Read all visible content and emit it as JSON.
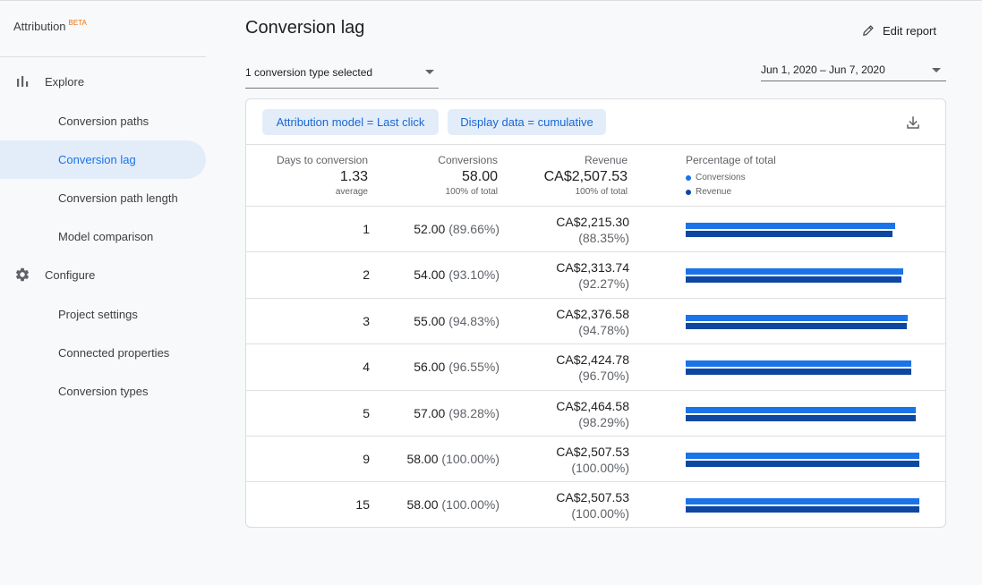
{
  "app": {
    "name": "Attribution",
    "badge": "BETA"
  },
  "sidebar": {
    "explore": {
      "label": "Explore",
      "icon": "bar-chart-icon",
      "items": [
        {
          "label": "Conversion paths",
          "active": false
        },
        {
          "label": "Conversion lag",
          "active": true
        },
        {
          "label": "Conversion path length",
          "active": false
        },
        {
          "label": "Model comparison",
          "active": false
        }
      ]
    },
    "configure": {
      "label": "Configure",
      "icon": "gear-icon",
      "items": [
        {
          "label": "Project settings"
        },
        {
          "label": "Connected properties"
        },
        {
          "label": "Conversion types"
        }
      ]
    }
  },
  "header": {
    "title": "Conversion lag",
    "edit_report": "Edit report",
    "conversion_select": "1 conversion type selected",
    "date_range": "Jun 1, 2020 – Jun 7, 2020"
  },
  "filters": {
    "model_chip": "Attribution model = Last click",
    "display_chip": "Display data = cumulative"
  },
  "table": {
    "columns": {
      "days": "Days to conversion",
      "conversions": "Conversions",
      "revenue": "Revenue",
      "percentage": "Percentage of total"
    },
    "summary": {
      "days_value": "1.33",
      "days_sub": "average",
      "conversions_value": "58.00",
      "conversions_sub": "100% of total",
      "revenue_value": "CA$2,507.53",
      "revenue_sub": "100% of total"
    },
    "legend": {
      "conversions": "Conversions",
      "revenue": "Revenue",
      "conversions_color": "#1a73e8",
      "revenue_color": "#0d47a1"
    },
    "rows": [
      {
        "days": "1",
        "conv": "52.00",
        "conv_pct": "(89.66%)",
        "rev": "CA$2,215.30",
        "rev_pct": "(88.35%)",
        "conv_frac": 0.8966,
        "rev_frac": 0.8835
      },
      {
        "days": "2",
        "conv": "54.00",
        "conv_pct": "(93.10%)",
        "rev": "CA$2,313.74",
        "rev_pct": "(92.27%)",
        "conv_frac": 0.931,
        "rev_frac": 0.9227
      },
      {
        "days": "3",
        "conv": "55.00",
        "conv_pct": "(94.83%)",
        "rev": "CA$2,376.58",
        "rev_pct": "(94.78%)",
        "conv_frac": 0.9483,
        "rev_frac": 0.9478
      },
      {
        "days": "4",
        "conv": "56.00",
        "conv_pct": "(96.55%)",
        "rev": "CA$2,424.78",
        "rev_pct": "(96.70%)",
        "conv_frac": 0.9655,
        "rev_frac": 0.967
      },
      {
        "days": "5",
        "conv": "57.00",
        "conv_pct": "(98.28%)",
        "rev": "CA$2,464.58",
        "rev_pct": "(98.29%)",
        "conv_frac": 0.9828,
        "rev_frac": 0.9829
      },
      {
        "days": "9",
        "conv": "58.00",
        "conv_pct": "(100.00%)",
        "rev": "CA$2,507.53",
        "rev_pct": "(100.00%)",
        "conv_frac": 1.0,
        "rev_frac": 1.0
      },
      {
        "days": "15",
        "conv": "58.00",
        "conv_pct": "(100.00%)",
        "rev": "CA$2,507.53",
        "rev_pct": "(100.00%)",
        "conv_frac": 1.0,
        "rev_frac": 1.0
      }
    ]
  }
}
